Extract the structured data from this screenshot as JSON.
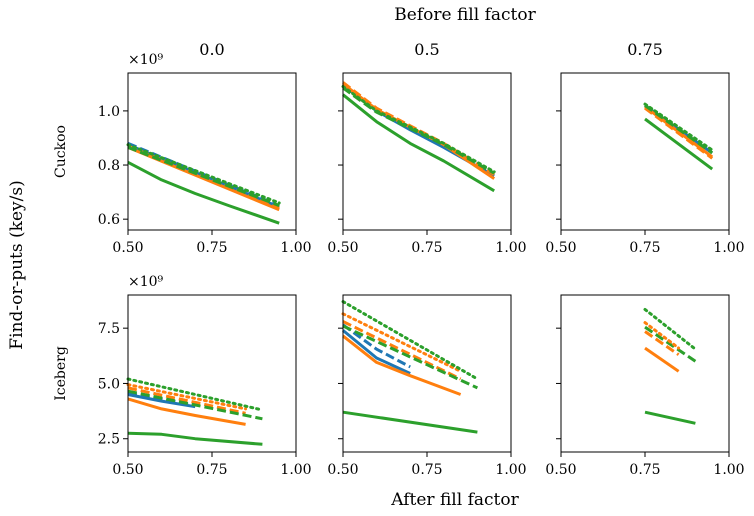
{
  "figure": {
    "title": "Before fill factor",
    "xlabel": "After fill factor",
    "ylabel": "Find-or-puts (key/s)",
    "exponent_label": "×10⁹"
  },
  "colors": {
    "blue": "#1f77b4",
    "orange": "#ff7f0e",
    "green": "#2ca02c"
  },
  "chart_data": [
    {
      "type": "line",
      "row": "Cuckoo",
      "column": "0.0",
      "xlim": [
        0.5,
        1.0
      ],
      "ylim": [
        0.56,
        1.14
      ],
      "xticks": [
        "0.50",
        "0.75",
        "1.00"
      ],
      "yticks": [
        "0.6",
        "0.8",
        "1.0"
      ],
      "series": [
        {
          "color": "blue",
          "style": "solid",
          "x": [
            0.5,
            0.95
          ],
          "y": [
            0.875,
            0.645
          ]
        },
        {
          "color": "orange",
          "style": "solid",
          "x": [
            0.5,
            0.95
          ],
          "y": [
            0.865,
            0.635
          ]
        },
        {
          "color": "green",
          "style": "solid",
          "x": [
            0.5,
            0.6,
            0.7,
            0.8,
            0.95
          ],
          "y": [
            0.81,
            0.745,
            0.695,
            0.65,
            0.585
          ]
        },
        {
          "color": "blue",
          "style": "dashed",
          "x": [
            0.5,
            0.95
          ],
          "y": [
            0.88,
            0.65
          ]
        },
        {
          "color": "orange",
          "style": "dashed",
          "x": [
            0.5,
            0.95
          ],
          "y": [
            0.87,
            0.64
          ]
        },
        {
          "color": "green",
          "style": "dashed",
          "x": [
            0.5,
            0.95
          ],
          "y": [
            0.865,
            0.65
          ]
        },
        {
          "color": "green",
          "style": "dotted",
          "x": [
            0.5,
            0.95
          ],
          "y": [
            0.875,
            0.66
          ]
        }
      ]
    },
    {
      "type": "line",
      "row": "Cuckoo",
      "column": "0.5",
      "xlim": [
        0.5,
        1.0
      ],
      "ylim": [
        0.56,
        1.14
      ],
      "xticks": [
        "0.50",
        "0.75",
        "1.00"
      ],
      "yticks": [
        "0.6",
        "0.8",
        "1.0"
      ],
      "series": [
        {
          "color": "blue",
          "style": "solid",
          "x": [
            0.5,
            0.6,
            0.7,
            0.8,
            0.95
          ],
          "y": [
            1.095,
            1.0,
            0.93,
            0.865,
            0.76
          ]
        },
        {
          "color": "orange",
          "style": "solid",
          "x": [
            0.5,
            0.6,
            0.7,
            0.8,
            0.95
          ],
          "y": [
            1.1,
            1.005,
            0.94,
            0.875,
            0.75
          ]
        },
        {
          "color": "green",
          "style": "solid",
          "x": [
            0.5,
            0.6,
            0.7,
            0.8,
            0.95
          ],
          "y": [
            1.06,
            0.96,
            0.88,
            0.815,
            0.705
          ]
        },
        {
          "color": "orange",
          "style": "dashed",
          "x": [
            0.5,
            0.6,
            0.7,
            0.8,
            0.95
          ],
          "y": [
            1.105,
            1.01,
            0.945,
            0.88,
            0.765
          ]
        },
        {
          "color": "green",
          "style": "dashed",
          "x": [
            0.5,
            0.6,
            0.7,
            0.8,
            0.95
          ],
          "y": [
            1.085,
            0.995,
            0.935,
            0.875,
            0.77
          ]
        },
        {
          "color": "green",
          "style": "dotted",
          "x": [
            0.5,
            0.6,
            0.7,
            0.8,
            0.95
          ],
          "y": [
            1.09,
            1.0,
            0.94,
            0.88,
            0.775
          ]
        }
      ]
    },
    {
      "type": "line",
      "row": "Cuckoo",
      "column": "0.75",
      "xlim": [
        0.5,
        1.0
      ],
      "ylim": [
        0.56,
        1.14
      ],
      "xticks": [
        "0.50",
        "0.75",
        "1.00"
      ],
      "yticks": [
        "0.6",
        "0.8",
        "1.0"
      ],
      "series": [
        {
          "color": "blue",
          "style": "solid",
          "x": [
            0.75,
            0.95
          ],
          "y": [
            1.02,
            0.845
          ]
        },
        {
          "color": "orange",
          "style": "solid",
          "x": [
            0.75,
            0.95
          ],
          "y": [
            1.015,
            0.83
          ]
        },
        {
          "color": "green",
          "style": "solid",
          "x": [
            0.75,
            0.95
          ],
          "y": [
            0.97,
            0.785
          ]
        },
        {
          "color": "orange",
          "style": "dashed",
          "x": [
            0.75,
            0.95
          ],
          "y": [
            1.01,
            0.825
          ]
        },
        {
          "color": "green",
          "style": "dashed",
          "x": [
            0.75,
            0.95
          ],
          "y": [
            1.02,
            0.845
          ]
        },
        {
          "color": "green",
          "style": "dotted",
          "x": [
            0.75,
            0.95
          ],
          "y": [
            1.025,
            0.855
          ]
        }
      ]
    },
    {
      "type": "line",
      "row": "Iceberg",
      "column": "0.0",
      "xlim": [
        0.5,
        1.0
      ],
      "ylim": [
        1.9,
        9.0
      ],
      "xticks": [
        "0.50",
        "0.75",
        "1.00"
      ],
      "yticks": [
        "2.5",
        "5.0",
        "7.5"
      ],
      "series": [
        {
          "color": "blue",
          "style": "solid",
          "x": [
            0.5,
            0.6,
            0.7
          ],
          "y": [
            4.5,
            4.2,
            3.95
          ]
        },
        {
          "color": "orange",
          "style": "solid",
          "x": [
            0.5,
            0.6,
            0.7,
            0.85
          ],
          "y": [
            4.3,
            3.85,
            3.55,
            3.15
          ]
        },
        {
          "color": "green",
          "style": "solid",
          "x": [
            0.5,
            0.6,
            0.7,
            0.9
          ],
          "y": [
            2.75,
            2.7,
            2.5,
            2.25
          ]
        },
        {
          "color": "blue",
          "style": "dashed",
          "x": [
            0.5,
            0.6,
            0.7
          ],
          "y": [
            4.55,
            4.3,
            4.0
          ]
        },
        {
          "color": "orange",
          "style": "dashed",
          "x": [
            0.5,
            0.85
          ],
          "y": [
            4.8,
            3.65
          ]
        },
        {
          "color": "green",
          "style": "dashed",
          "x": [
            0.5,
            0.9
          ],
          "y": [
            4.65,
            3.4
          ]
        },
        {
          "color": "orange",
          "style": "dotted",
          "x": [
            0.5,
            0.85
          ],
          "y": [
            4.95,
            3.85
          ]
        },
        {
          "color": "green",
          "style": "dotted",
          "x": [
            0.5,
            0.9
          ],
          "y": [
            5.2,
            3.8
          ]
        }
      ]
    },
    {
      "type": "line",
      "row": "Iceberg",
      "column": "0.5",
      "xlim": [
        0.5,
        1.0
      ],
      "ylim": [
        1.9,
        9.0
      ],
      "xticks": [
        "0.50",
        "0.75",
        "1.00"
      ],
      "yticks": [
        "2.5",
        "5.0",
        "7.5"
      ],
      "series": [
        {
          "color": "blue",
          "style": "solid",
          "x": [
            0.5,
            0.6,
            0.7
          ],
          "y": [
            7.4,
            6.15,
            5.45
          ]
        },
        {
          "color": "orange",
          "style": "solid",
          "x": [
            0.5,
            0.6,
            0.7,
            0.85
          ],
          "y": [
            7.15,
            5.95,
            5.35,
            4.5
          ]
        },
        {
          "color": "green",
          "style": "solid",
          "x": [
            0.5,
            0.9
          ],
          "y": [
            3.7,
            2.8
          ]
        },
        {
          "color": "blue",
          "style": "dashed",
          "x": [
            0.5,
            0.6,
            0.7
          ],
          "y": [
            7.65,
            6.55,
            5.75
          ]
        },
        {
          "color": "orange",
          "style": "dashed",
          "x": [
            0.5,
            0.85
          ],
          "y": [
            7.8,
            5.2
          ]
        },
        {
          "color": "green",
          "style": "dashed",
          "x": [
            0.5,
            0.9
          ],
          "y": [
            7.6,
            4.8
          ]
        },
        {
          "color": "orange",
          "style": "dotted",
          "x": [
            0.5,
            0.85
          ],
          "y": [
            8.15,
            5.55
          ]
        },
        {
          "color": "green",
          "style": "dotted",
          "x": [
            0.5,
            0.9
          ],
          "y": [
            8.7,
            5.2
          ]
        }
      ]
    },
    {
      "type": "line",
      "row": "Iceberg",
      "column": "0.75",
      "xlim": [
        0.5,
        1.0
      ],
      "ylim": [
        1.9,
        9.0
      ],
      "xticks": [
        "0.50",
        "0.75",
        "1.00"
      ],
      "yticks": [
        "2.5",
        "5.0",
        "7.5"
      ],
      "series": [
        {
          "color": "orange",
          "style": "solid",
          "x": [
            0.75,
            0.85
          ],
          "y": [
            6.6,
            5.55
          ]
        },
        {
          "color": "green",
          "style": "solid",
          "x": [
            0.75,
            0.9
          ],
          "y": [
            3.7,
            3.2
          ]
        },
        {
          "color": "orange",
          "style": "dashed",
          "x": [
            0.75,
            0.85
          ],
          "y": [
            7.35,
            6.3
          ]
        },
        {
          "color": "green",
          "style": "dashed",
          "x": [
            0.75,
            0.9
          ],
          "y": [
            7.55,
            6.0
          ]
        },
        {
          "color": "orange",
          "style": "dotted",
          "x": [
            0.75,
            0.85
          ],
          "y": [
            7.75,
            6.6
          ]
        },
        {
          "color": "green",
          "style": "dotted",
          "x": [
            0.75,
            0.9
          ],
          "y": [
            8.35,
            6.55
          ]
        }
      ]
    }
  ]
}
